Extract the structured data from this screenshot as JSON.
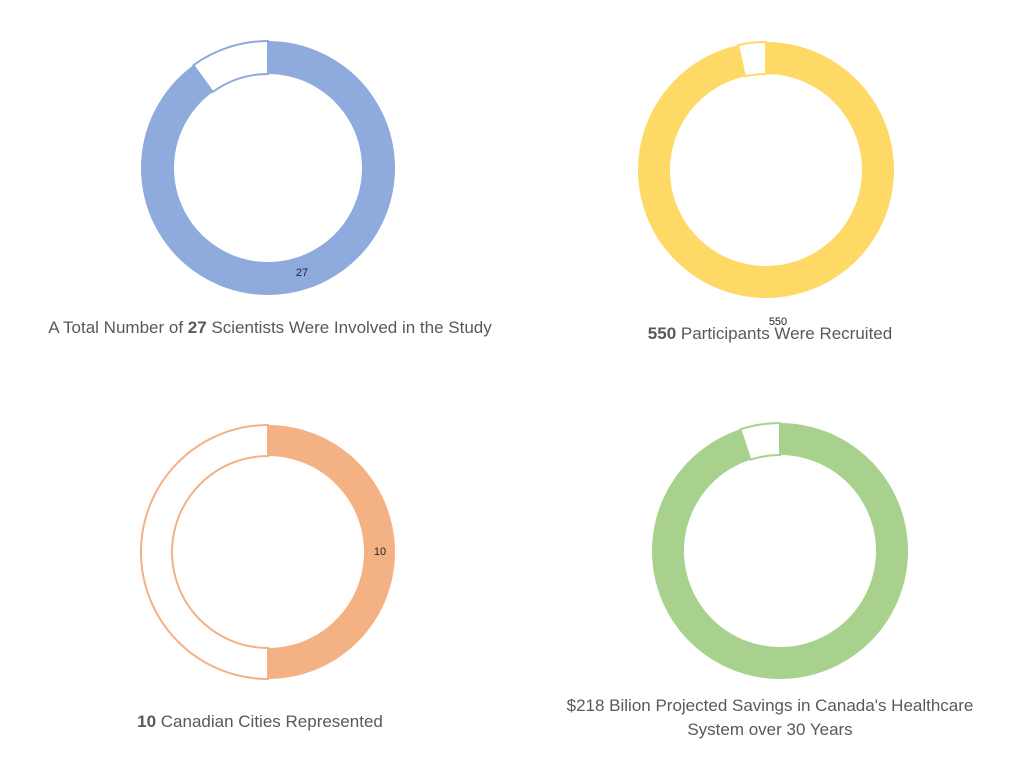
{
  "chart_data": [
    {
      "type": "donut",
      "value": 27,
      "total": 30,
      "data_label": "27",
      "caption": {
        "pre": "A Total Number of ",
        "highlight": "27",
        "post": " Scientists Were Involved in the Study"
      },
      "color": "#8FAADC"
    },
    {
      "type": "donut",
      "value": 550,
      "total": 570,
      "data_label": "550",
      "caption": {
        "pre": "",
        "highlight": "550",
        "post": " Participants Were Recruited"
      },
      "color": "#FFD966"
    },
    {
      "type": "donut",
      "value": 10,
      "total": 20,
      "data_label": "10",
      "caption": {
        "pre": "",
        "highlight": "10",
        "post": " Canadian Cities Represented"
      },
      "color": "#F4B183"
    },
    {
      "type": "donut",
      "value": 0.95,
      "total": 1,
      "data_label": "",
      "caption": {
        "pre": "",
        "highlight": "",
        "post": "$218 Bilion Projected Savings in Canada's Healthcare System over 30 Years"
      },
      "color": "#A9D18E"
    }
  ]
}
